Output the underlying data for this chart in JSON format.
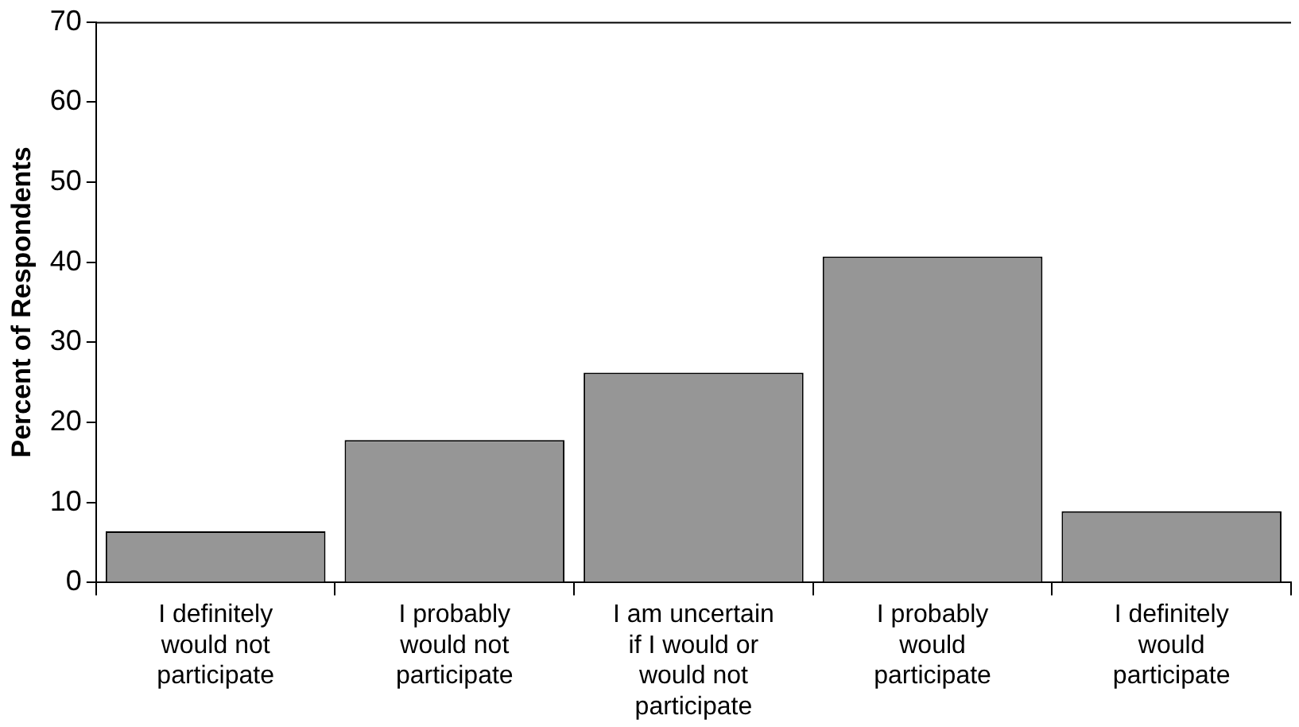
{
  "chart_data": {
    "type": "bar",
    "ylabel": "Percent of Respondents",
    "categories": [
      "I definitely would not participate",
      "I probably would not participate",
      "I am uncertain if I would or would not participate",
      "I probably would participate",
      "I definitely would participate"
    ],
    "values": [
      6.4,
      17.8,
      26.2,
      40.7,
      8.9
    ],
    "color": "#969696",
    "ylim": [
      0,
      70
    ],
    "yticks": [
      0,
      10,
      20,
      30,
      40,
      50,
      60,
      70
    ],
    "grid": false,
    "legend": false
  }
}
